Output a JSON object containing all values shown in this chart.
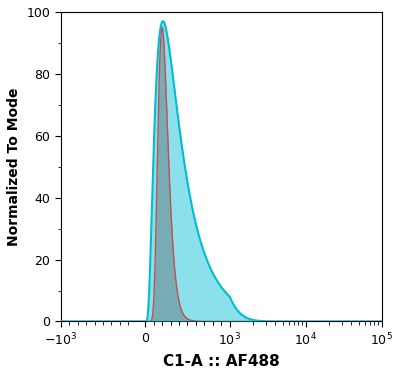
{
  "title": "",
  "xlabel": "C1-A :: AF488",
  "ylabel": "Normalized To Mode",
  "ylim": [
    0,
    100
  ],
  "yticks": [
    0,
    20,
    40,
    60,
    80,
    100
  ],
  "background_color": "#ffffff",
  "red_fill_color": "#c0504d",
  "red_line_color": "#c0504d",
  "blue_fill_color": "#00bcd4",
  "blue_line_color": "#00bcd4",
  "red_fill_alpha": 0.55,
  "blue_fill_alpha": 0.45,
  "linthresh": 1000,
  "linscale": 1.0,
  "xlim_left": -1000,
  "xlim_right": 100000,
  "x_tick_positions": [
    -1000,
    0,
    1000,
    10000,
    100000
  ],
  "x_tick_labels": [
    "$-10^3$",
    "0",
    "$10^3$",
    "$10^4$",
    "$10^5$"
  ],
  "red_peak_x": 200,
  "red_log_sigma": 0.3,
  "red_peak_y": 95,
  "blue_peak_x": 210,
  "blue_log_sigma": 0.7,
  "blue_peak_y": 97
}
